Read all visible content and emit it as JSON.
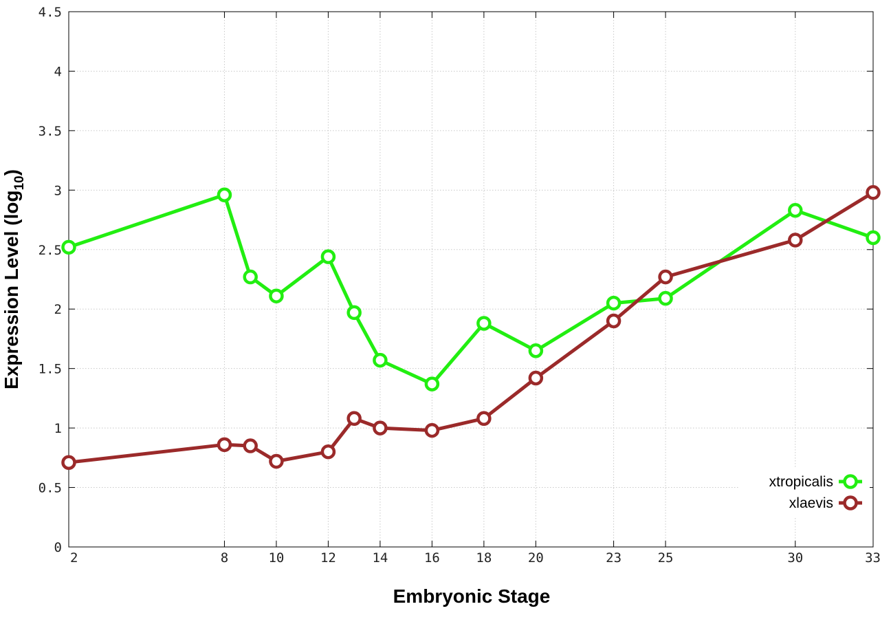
{
  "chart_data": {
    "type": "line",
    "xlabel": "Embryonic Stage",
    "ylabel_main": "Expression Level (log",
    "ylabel_sub": "10",
    "ylabel_close": ")",
    "x": [
      2,
      8,
      9,
      10,
      12,
      13,
      14,
      16,
      18,
      20,
      23,
      25,
      30,
      33
    ],
    "x_tick_labels": [
      "2",
      "8",
      "10",
      "12",
      "14",
      "16",
      "18",
      "20",
      "23",
      "25",
      "30",
      "33"
    ],
    "xlim": [
      2,
      33
    ],
    "ylim": [
      0,
      4.5
    ],
    "y_ticks": [
      0,
      0.5,
      1,
      1.5,
      2,
      2.5,
      3,
      3.5,
      4,
      4.5
    ],
    "y_tick_labels": [
      "0",
      "0.5",
      "1",
      "1.5",
      "2",
      "2.5",
      "3",
      "3.5",
      "4",
      "4.5"
    ],
    "grid": true,
    "legend_position": "bottom-right",
    "series": [
      {
        "name": "xtropicalis",
        "color": "#22ee11",
        "values": [
          2.52,
          2.96,
          2.27,
          2.11,
          2.44,
          1.97,
          1.57,
          1.37,
          1.88,
          1.65,
          2.05,
          2.09,
          2.83,
          2.6
        ]
      },
      {
        "name": "xlaevis",
        "color": "#9b2a2a",
        "values": [
          0.71,
          0.86,
          0.85,
          0.72,
          0.8,
          1.08,
          1.0,
          0.98,
          1.08,
          1.42,
          1.9,
          2.27,
          2.58,
          2.98
        ]
      }
    ]
  }
}
